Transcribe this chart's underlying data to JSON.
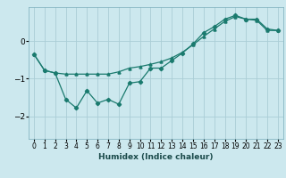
{
  "title": "",
  "xlabel": "Humidex (Indice chaleur)",
  "ylabel": "",
  "bg_color": "#cce8ee",
  "line_color": "#1a7a6e",
  "grid_color": "#aacdd6",
  "xlim": [
    -0.5,
    23.5
  ],
  "ylim": [
    -2.6,
    0.9
  ],
  "yticks": [
    -2,
    -1,
    0
  ],
  "xticks": [
    0,
    1,
    2,
    3,
    4,
    5,
    6,
    7,
    8,
    9,
    10,
    11,
    12,
    13,
    14,
    15,
    16,
    17,
    18,
    19,
    20,
    21,
    22,
    23
  ],
  "line1_x": [
    0,
    1,
    2,
    3,
    4,
    5,
    6,
    7,
    8,
    9,
    10,
    11,
    12,
    13,
    14,
    15,
    16,
    17,
    18,
    19,
    20,
    21,
    22,
    23
  ],
  "line1_y": [
    -0.35,
    -0.78,
    -0.85,
    -1.55,
    -1.78,
    -1.32,
    -1.65,
    -1.55,
    -1.68,
    -1.12,
    -1.08,
    -0.72,
    -0.72,
    -0.52,
    -0.32,
    -0.08,
    0.22,
    0.38,
    0.58,
    0.68,
    0.58,
    0.58,
    0.32,
    0.28
  ],
  "line2_x": [
    0,
    1,
    2,
    3,
    4,
    5,
    6,
    7,
    8,
    9,
    10,
    11,
    12,
    13,
    14,
    15,
    16,
    17,
    18,
    19,
    20,
    21,
    22,
    23
  ],
  "line2_y": [
    -0.35,
    -0.78,
    -0.85,
    -0.88,
    -0.88,
    -0.88,
    -0.88,
    -0.88,
    -0.82,
    -0.72,
    -0.68,
    -0.62,
    -0.55,
    -0.45,
    -0.3,
    -0.1,
    0.12,
    0.32,
    0.52,
    0.65,
    0.58,
    0.55,
    0.28,
    0.28
  ]
}
